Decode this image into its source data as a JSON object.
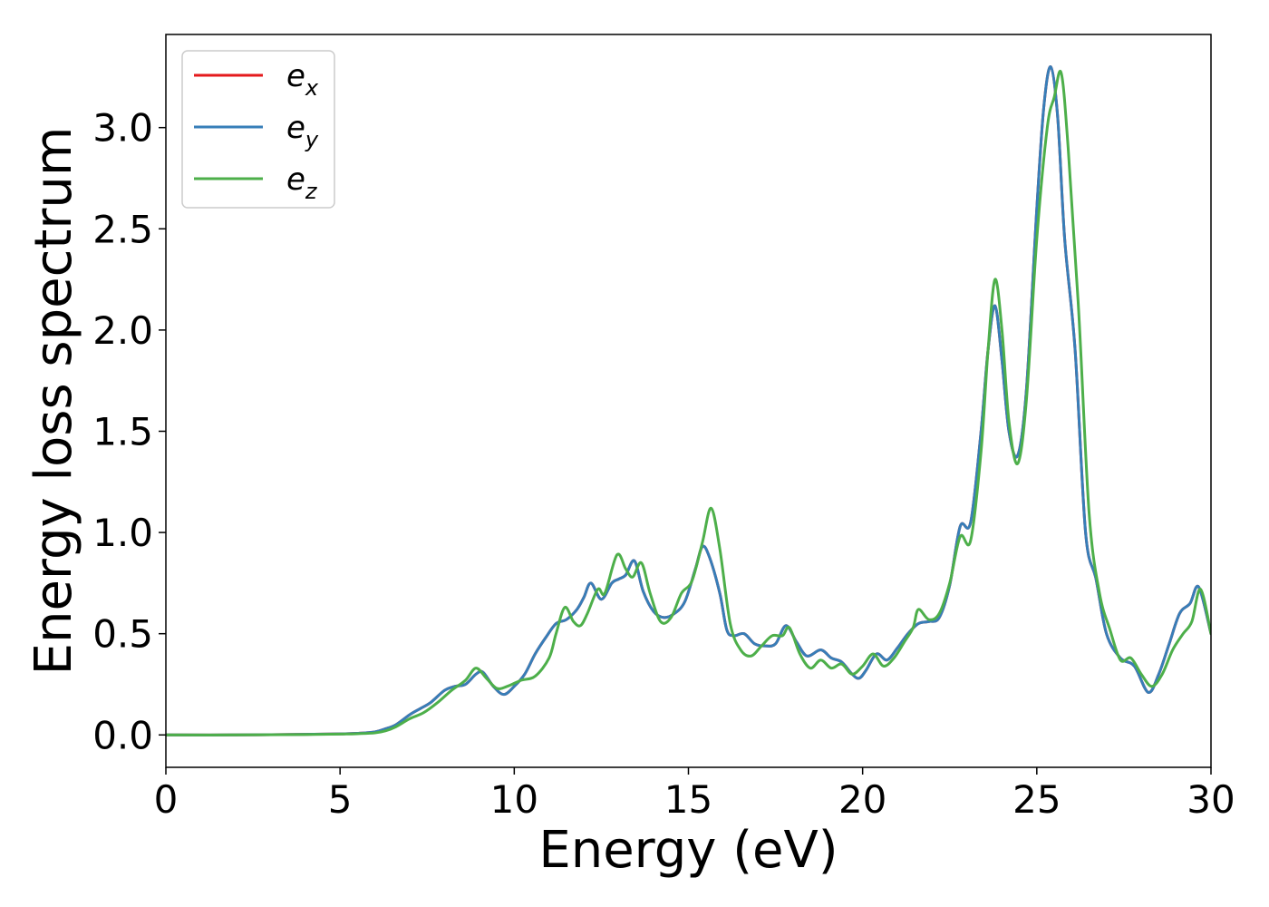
{
  "chart_data": {
    "type": "line",
    "title": "",
    "xlabel": "Energy (eV)",
    "ylabel": "Energy loss spectrum",
    "xlim": [
      0,
      30
    ],
    "ylim": [
      -0.16,
      3.46
    ],
    "xticks": [
      0,
      5,
      10,
      15,
      20,
      25,
      30
    ],
    "yticks": [
      0.0,
      0.5,
      1.0,
      1.5,
      2.0,
      2.5,
      3.0
    ],
    "xtick_labels": [
      "0",
      "5",
      "10",
      "15",
      "20",
      "25",
      "30"
    ],
    "ytick_labels": [
      "0.0",
      "0.5",
      "1.0",
      "1.5",
      "2.0",
      "2.5",
      "3.0"
    ],
    "grid": false,
    "legend_position": "top-left",
    "series": [
      {
        "name": "e",
        "subscript": "x",
        "color": "#e41a1c",
        "x": [
          0,
          2,
          4,
          5,
          5.5,
          6,
          6.3,
          6.6,
          7.0,
          7.3,
          7.6,
          8.0,
          8.3,
          8.6,
          8.9,
          9.1,
          9.4,
          9.7,
          10.0,
          10.3,
          10.6,
          10.9,
          11.2,
          11.5,
          11.8,
          12.0,
          12.2,
          12.5,
          12.8,
          13.0,
          13.2,
          13.45,
          13.7,
          14.0,
          14.3,
          14.6,
          14.9,
          15.2,
          15.4,
          15.6,
          15.9,
          16.1,
          16.3,
          16.6,
          16.9,
          17.2,
          17.5,
          17.8,
          18.1,
          18.4,
          18.8,
          19.1,
          19.4,
          19.7,
          19.9,
          20.1,
          20.4,
          20.7,
          21.0,
          21.3,
          21.6,
          21.9,
          22.2,
          22.5,
          22.8,
          23.1,
          23.4,
          23.6,
          23.8,
          24.0,
          24.2,
          24.45,
          24.7,
          25.0,
          25.2,
          25.4,
          25.6,
          25.8,
          26.1,
          26.4,
          26.7,
          27.0,
          27.4,
          27.8,
          28.2,
          28.5,
          28.8,
          29.1,
          29.4,
          29.65,
          30.0
        ],
        "y": [
          0.0,
          0.0,
          0.003,
          0.005,
          0.008,
          0.015,
          0.03,
          0.05,
          0.1,
          0.13,
          0.16,
          0.22,
          0.24,
          0.25,
          0.3,
          0.31,
          0.24,
          0.2,
          0.24,
          0.3,
          0.4,
          0.48,
          0.55,
          0.57,
          0.62,
          0.68,
          0.75,
          0.67,
          0.75,
          0.77,
          0.79,
          0.86,
          0.71,
          0.61,
          0.58,
          0.6,
          0.66,
          0.82,
          0.93,
          0.88,
          0.7,
          0.52,
          0.49,
          0.5,
          0.45,
          0.44,
          0.45,
          0.54,
          0.46,
          0.39,
          0.42,
          0.38,
          0.36,
          0.3,
          0.28,
          0.32,
          0.4,
          0.37,
          0.43,
          0.5,
          0.55,
          0.56,
          0.58,
          0.74,
          1.03,
          1.05,
          1.5,
          1.9,
          2.12,
          1.85,
          1.5,
          1.38,
          1.7,
          2.6,
          3.1,
          3.3,
          3.05,
          2.45,
          1.9,
          1.0,
          0.77,
          0.5,
          0.38,
          0.34,
          0.21,
          0.3,
          0.45,
          0.6,
          0.65,
          0.73,
          0.5
        ]
      },
      {
        "name": "e",
        "subscript": "y",
        "color": "#377eb8",
        "x": [
          0,
          2,
          4,
          5,
          5.5,
          6,
          6.3,
          6.6,
          7.0,
          7.3,
          7.6,
          8.0,
          8.3,
          8.6,
          8.9,
          9.1,
          9.4,
          9.7,
          10.0,
          10.3,
          10.6,
          10.9,
          11.2,
          11.5,
          11.8,
          12.0,
          12.2,
          12.5,
          12.8,
          13.0,
          13.2,
          13.45,
          13.7,
          14.0,
          14.3,
          14.6,
          14.9,
          15.2,
          15.4,
          15.6,
          15.9,
          16.1,
          16.3,
          16.6,
          16.9,
          17.2,
          17.5,
          17.8,
          18.1,
          18.4,
          18.8,
          19.1,
          19.4,
          19.7,
          19.9,
          20.1,
          20.4,
          20.7,
          21.0,
          21.3,
          21.6,
          21.9,
          22.2,
          22.5,
          22.8,
          23.1,
          23.4,
          23.6,
          23.8,
          24.0,
          24.2,
          24.45,
          24.7,
          25.0,
          25.2,
          25.4,
          25.6,
          25.8,
          26.1,
          26.4,
          26.7,
          27.0,
          27.4,
          27.8,
          28.2,
          28.5,
          28.8,
          29.1,
          29.4,
          29.65,
          30.0
        ],
        "y": [
          0.0,
          0.0,
          0.003,
          0.005,
          0.008,
          0.015,
          0.03,
          0.05,
          0.1,
          0.13,
          0.16,
          0.22,
          0.24,
          0.25,
          0.3,
          0.31,
          0.24,
          0.2,
          0.24,
          0.3,
          0.4,
          0.48,
          0.55,
          0.57,
          0.62,
          0.68,
          0.75,
          0.67,
          0.75,
          0.77,
          0.79,
          0.86,
          0.71,
          0.61,
          0.58,
          0.6,
          0.66,
          0.82,
          0.93,
          0.88,
          0.7,
          0.52,
          0.49,
          0.5,
          0.45,
          0.44,
          0.45,
          0.54,
          0.46,
          0.39,
          0.42,
          0.38,
          0.36,
          0.3,
          0.28,
          0.32,
          0.4,
          0.37,
          0.43,
          0.5,
          0.55,
          0.56,
          0.58,
          0.74,
          1.03,
          1.05,
          1.5,
          1.9,
          2.12,
          1.85,
          1.5,
          1.38,
          1.7,
          2.6,
          3.1,
          3.3,
          3.05,
          2.45,
          1.9,
          1.0,
          0.77,
          0.5,
          0.38,
          0.34,
          0.21,
          0.3,
          0.45,
          0.6,
          0.65,
          0.73,
          0.5
        ]
      },
      {
        "name": "e",
        "subscript": "z",
        "color": "#4daf4a",
        "x": [
          0,
          2,
          4,
          5,
          5.5,
          6,
          6.3,
          6.6,
          7.0,
          7.4,
          7.8,
          8.2,
          8.6,
          8.9,
          9.2,
          9.5,
          9.8,
          10.2,
          10.6,
          11.0,
          11.2,
          11.45,
          11.7,
          11.9,
          12.1,
          12.4,
          12.6,
          12.95,
          13.2,
          13.4,
          13.65,
          13.9,
          14.2,
          14.5,
          14.8,
          15.1,
          15.4,
          15.65,
          15.9,
          16.2,
          16.5,
          16.8,
          17.1,
          17.4,
          17.7,
          17.9,
          18.2,
          18.5,
          18.8,
          19.1,
          19.4,
          19.7,
          20.0,
          20.3,
          20.6,
          20.9,
          21.2,
          21.45,
          21.6,
          21.9,
          22.2,
          22.5,
          22.8,
          23.1,
          23.4,
          23.6,
          23.8,
          24.0,
          24.2,
          24.45,
          24.7,
          25.0,
          25.3,
          25.5,
          25.7,
          25.9,
          26.2,
          26.5,
          26.8,
          27.1,
          27.4,
          27.7,
          28.0,
          28.3,
          28.6,
          28.9,
          29.2,
          29.45,
          29.7,
          30.0
        ],
        "y": [
          0.0,
          0.0,
          0.002,
          0.004,
          0.006,
          0.01,
          0.02,
          0.04,
          0.08,
          0.11,
          0.16,
          0.22,
          0.27,
          0.33,
          0.28,
          0.23,
          0.24,
          0.27,
          0.29,
          0.38,
          0.5,
          0.63,
          0.56,
          0.54,
          0.6,
          0.72,
          0.7,
          0.89,
          0.82,
          0.78,
          0.85,
          0.7,
          0.56,
          0.58,
          0.7,
          0.76,
          0.95,
          1.12,
          0.92,
          0.55,
          0.42,
          0.39,
          0.44,
          0.49,
          0.49,
          0.53,
          0.4,
          0.33,
          0.37,
          0.33,
          0.35,
          0.3,
          0.34,
          0.4,
          0.34,
          0.38,
          0.46,
          0.53,
          0.62,
          0.57,
          0.6,
          0.75,
          0.98,
          0.96,
          1.4,
          1.9,
          2.25,
          2.0,
          1.55,
          1.34,
          1.65,
          2.45,
          3.0,
          3.15,
          3.27,
          2.9,
          2.1,
          1.1,
          0.7,
          0.52,
          0.37,
          0.38,
          0.3,
          0.24,
          0.3,
          0.42,
          0.5,
          0.56,
          0.72,
          0.5
        ]
      }
    ]
  }
}
